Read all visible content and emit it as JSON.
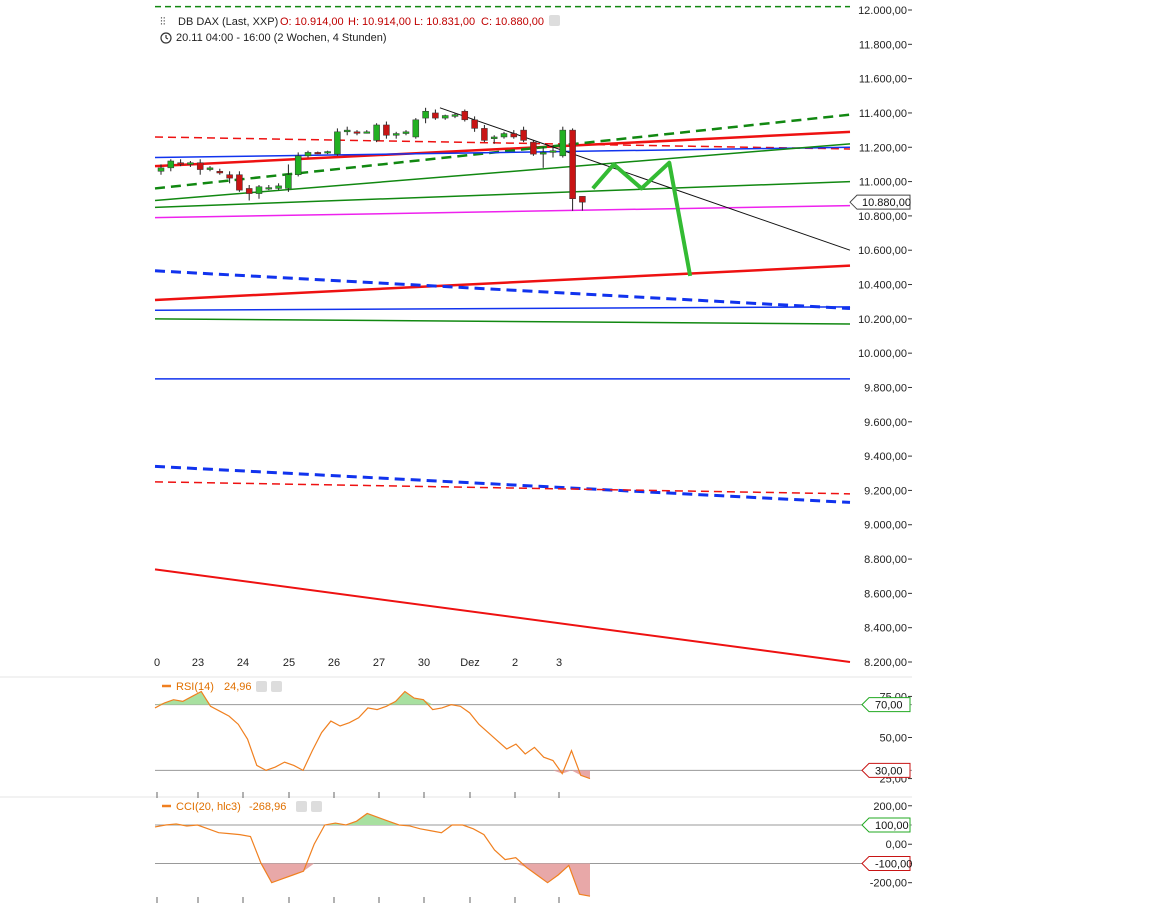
{
  "header": {
    "instrument": "DB DAX (Last, XXP)",
    "open": "O: 10.914,00",
    "high": "H: 10.914,00",
    "low": "L: 10.831,00",
    "close": "C: 10.880,00",
    "period": "20.11 04:00 - 16:00 (2 Wochen, 4 Stunden)"
  },
  "colors": {
    "up": "#22b022",
    "down": "#c81414",
    "red_line": "#ee1111",
    "green_line": "#118811",
    "blue_line": "#1133ee",
    "magenta_line": "#ee22ee",
    "rsi_line": "#f08020",
    "fill_green": "#a8e0a0",
    "fill_red": "#e8a8a8"
  },
  "chart_data": [
    {
      "type": "candlestick",
      "name": "DB DAX",
      "x_tick_labels": [
        "0",
        "23",
        "24",
        "25",
        "26",
        "27",
        "30",
        "Dez",
        "2",
        "3"
      ],
      "y_tick_labels": [
        "12.000,00",
        "11.800,00",
        "11.600,00",
        "11.400,00",
        "11.200,00",
        "11.000,00",
        "10.800,00",
        "10.600,00",
        "10.400,00",
        "10.200,00",
        "10.000,00",
        "9.800,00",
        "9.600,00",
        "9.400,00",
        "9.200,00",
        "9.000,00",
        "8.800,00",
        "8.600,00",
        "8.400,00",
        "8.200,00"
      ],
      "ylim": [
        8200,
        12000
      ],
      "last_value_label": "10.880,00",
      "last_value": 10880,
      "candles": [
        {
          "o": 11060,
          "h": 11100,
          "l": 11040,
          "c": 11080
        },
        {
          "o": 11080,
          "h": 11130,
          "l": 11060,
          "c": 11120
        },
        {
          "o": 11110,
          "h": 11130,
          "l": 11090,
          "c": 11100
        },
        {
          "o": 11100,
          "h": 11120,
          "l": 11085,
          "c": 11110
        },
        {
          "o": 11110,
          "h": 11130,
          "l": 11040,
          "c": 11070
        },
        {
          "o": 11070,
          "h": 11090,
          "l": 11060,
          "c": 11080
        },
        {
          "o": 11060,
          "h": 11075,
          "l": 11040,
          "c": 11050
        },
        {
          "o": 11040,
          "h": 11060,
          "l": 10990,
          "c": 11020
        },
        {
          "o": 11040,
          "h": 11060,
          "l": 10940,
          "c": 10950
        },
        {
          "o": 10960,
          "h": 10980,
          "l": 10890,
          "c": 10930
        },
        {
          "o": 10930,
          "h": 10980,
          "l": 10900,
          "c": 10970
        },
        {
          "o": 10960,
          "h": 10980,
          "l": 10950,
          "c": 10965
        },
        {
          "o": 10960,
          "h": 10990,
          "l": 10950,
          "c": 10975
        },
        {
          "o": 10960,
          "h": 11100,
          "l": 10940,
          "c": 11040
        },
        {
          "o": 11040,
          "h": 11170,
          "l": 11030,
          "c": 11150
        },
        {
          "o": 11150,
          "h": 11180,
          "l": 11140,
          "c": 11170
        },
        {
          "o": 11170,
          "h": 11175,
          "l": 11160,
          "c": 11165
        },
        {
          "o": 11170,
          "h": 11180,
          "l": 11160,
          "c": 11175
        },
        {
          "o": 11160,
          "h": 11310,
          "l": 11150,
          "c": 11290
        },
        {
          "o": 11290,
          "h": 11320,
          "l": 11270,
          "c": 11300
        },
        {
          "o": 11290,
          "h": 11300,
          "l": 11270,
          "c": 11285
        },
        {
          "o": 11290,
          "h": 11300,
          "l": 11280,
          "c": 11290
        },
        {
          "o": 11240,
          "h": 11340,
          "l": 11230,
          "c": 11330
        },
        {
          "o": 11330,
          "h": 11350,
          "l": 11250,
          "c": 11270
        },
        {
          "o": 11270,
          "h": 11290,
          "l": 11250,
          "c": 11280
        },
        {
          "o": 11280,
          "h": 11300,
          "l": 11270,
          "c": 11290
        },
        {
          "o": 11260,
          "h": 11370,
          "l": 11250,
          "c": 11360
        },
        {
          "o": 11370,
          "h": 11430,
          "l": 11340,
          "c": 11410
        },
        {
          "o": 11400,
          "h": 11420,
          "l": 11360,
          "c": 11370
        },
        {
          "o": 11370,
          "h": 11390,
          "l": 11360,
          "c": 11385
        },
        {
          "o": 11380,
          "h": 11400,
          "l": 11370,
          "c": 11390
        },
        {
          "o": 11410,
          "h": 11420,
          "l": 11350,
          "c": 11360
        },
        {
          "o": 11360,
          "h": 11380,
          "l": 11290,
          "c": 11310
        },
        {
          "o": 11310,
          "h": 11330,
          "l": 11230,
          "c": 11240
        },
        {
          "o": 11250,
          "h": 11270,
          "l": 11220,
          "c": 11260
        },
        {
          "o": 11260,
          "h": 11290,
          "l": 11250,
          "c": 11280
        },
        {
          "o": 11280,
          "h": 11300,
          "l": 11250,
          "c": 11260
        },
        {
          "o": 11300,
          "h": 11320,
          "l": 11230,
          "c": 11240
        },
        {
          "o": 11230,
          "h": 11240,
          "l": 11150,
          "c": 11160
        },
        {
          "o": 11160,
          "h": 11200,
          "l": 11080,
          "c": 11170
        },
        {
          "o": 11170,
          "h": 11210,
          "l": 11140,
          "c": 11180
        },
        {
          "o": 11150,
          "h": 11320,
          "l": 11140,
          "c": 11300
        },
        {
          "o": 11300,
          "h": 11310,
          "l": 10830,
          "c": 10900
        },
        {
          "o": 10914,
          "h": 10914,
          "l": 10831,
          "c": 10880
        }
      ],
      "overlay_lines": [
        {
          "color": "#118811",
          "width": 1.5,
          "dash": "6,4",
          "points": [
            [
              0,
              12020
            ],
            [
              1,
              12020
            ]
          ]
        },
        {
          "color": "#ee1111",
          "width": 1.5,
          "dash": "8,5",
          "points": [
            [
              0,
              11260
            ],
            [
              1,
              11190
            ]
          ]
        },
        {
          "color": "#ee1111",
          "width": 2.5,
          "dash": "",
          "points": [
            [
              0,
              11090
            ],
            [
              1,
              11290
            ]
          ]
        },
        {
          "color": "#118811",
          "width": 2.5,
          "dash": "10,6",
          "points": [
            [
              0,
              10960
            ],
            [
              1,
              11390
            ]
          ]
        },
        {
          "color": "#1133ee",
          "width": 1.5,
          "dash": "",
          "points": [
            [
              0,
              11140
            ],
            [
              1,
              11200
            ]
          ]
        },
        {
          "color": "#118811",
          "width": 1.5,
          "dash": "",
          "points": [
            [
              0,
              10890
            ],
            [
              1,
              11220
            ]
          ]
        },
        {
          "color": "#118811",
          "width": 1.5,
          "dash": "",
          "points": [
            [
              0,
              10850
            ],
            [
              1,
              11000
            ]
          ]
        },
        {
          "color": "#ee22ee",
          "width": 1.5,
          "dash": "",
          "points": [
            [
              0,
              10790
            ],
            [
              1,
              10860
            ]
          ]
        },
        {
          "color": "#111111",
          "width": 1,
          "dash": "",
          "points": [
            [
              0.41,
              11430
            ],
            [
              1,
              10600
            ]
          ]
        },
        {
          "color": "#ee1111",
          "width": 2.5,
          "dash": "",
          "points": [
            [
              0,
              10310
            ],
            [
              1,
              10510
            ]
          ]
        },
        {
          "color": "#1133ee",
          "width": 3,
          "dash": "10,6",
          "points": [
            [
              0,
              10480
            ],
            [
              1,
              10260
            ]
          ]
        },
        {
          "color": "#1133ee",
          "width": 1.5,
          "dash": "",
          "points": [
            [
              0,
              10250
            ],
            [
              1,
              10270
            ]
          ]
        },
        {
          "color": "#118811",
          "width": 1.5,
          "dash": "",
          "points": [
            [
              0,
              10200
            ],
            [
              1,
              10170
            ]
          ]
        },
        {
          "color": "#1133ee",
          "width": 1.5,
          "dash": "",
          "points": [
            [
              0,
              9850
            ],
            [
              1,
              9850
            ]
          ]
        },
        {
          "color": "#1133ee",
          "width": 3,
          "dash": "10,6",
          "points": [
            [
              0,
              9340
            ],
            [
              1,
              9130
            ]
          ]
        },
        {
          "color": "#ee1111",
          "width": 1.5,
          "dash": "8,5",
          "points": [
            [
              0,
              9250
            ],
            [
              1,
              9180
            ]
          ]
        },
        {
          "color": "#ee1111",
          "width": 2,
          "dash": "",
          "points": [
            [
              0,
              8740
            ],
            [
              1,
              8200
            ]
          ]
        }
      ],
      "projection_path": {
        "color": "#33bb33",
        "points": [
          [
            0.63,
            10960
          ],
          [
            0.66,
            11100
          ],
          [
            0.7,
            10960
          ],
          [
            0.74,
            11110
          ],
          [
            0.77,
            10450
          ]
        ]
      }
    },
    {
      "type": "line",
      "name": "RSI",
      "label": "RSI(14)",
      "value_label": "24,96",
      "y_tick_labels": [
        "75,00",
        "50,00",
        "25,00"
      ],
      "ylim": [
        15,
        85
      ],
      "levels": [
        {
          "value": 70,
          "label": "70,00"
        },
        {
          "value": 30,
          "label": "30,00"
        }
      ],
      "values": [
        68,
        71,
        73,
        72,
        75,
        78,
        69,
        66,
        63,
        58,
        49,
        33,
        30,
        32,
        35,
        33,
        30,
        42,
        53,
        60,
        57,
        59,
        62,
        68,
        67,
        69,
        72,
        78,
        74,
        73,
        67,
        68,
        70,
        69,
        65,
        58,
        53,
        48,
        43,
        46,
        40,
        44,
        38,
        36,
        28,
        42,
        27,
        25
      ]
    },
    {
      "type": "line",
      "name": "CCI",
      "label": "CCI(20, hlc3)",
      "value_label": "-268,96",
      "y_tick_labels": [
        "200,00",
        "100,00",
        "0,00",
        "-100,00",
        "-200,00"
      ],
      "ylim": [
        -290,
        230
      ],
      "levels": [
        {
          "value": 100,
          "label": "100,00"
        },
        {
          "value": -100,
          "label": "-100,00"
        }
      ],
      "values": [
        90,
        100,
        105,
        95,
        100,
        80,
        60,
        55,
        50,
        40,
        -100,
        -200,
        -180,
        -160,
        -140,
        0,
        100,
        110,
        100,
        120,
        160,
        140,
        120,
        100,
        95,
        80,
        70,
        60,
        100,
        100,
        80,
        50,
        -30,
        -80,
        -70,
        -120,
        -160,
        -200,
        -160,
        -110,
        -260,
        -270
      ]
    }
  ]
}
